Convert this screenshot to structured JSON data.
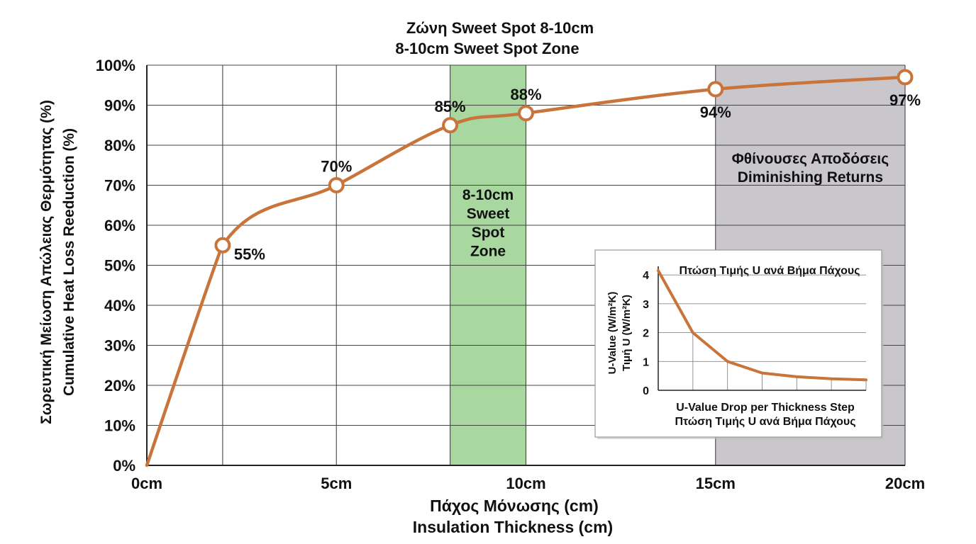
{
  "chart_data": {
    "type": "line",
    "title": "Ζώνη Sweet Spot 8-10cm",
    "subtitle": "8-10cm Sweet Spot Zone",
    "xlabel": [
      "Πάχος Μόνωσης (cm)",
      "Insulation Thickness (cm)"
    ],
    "ylabel": [
      "Σωρευτική Μείωση Απώλειας Θερμότητας (%)",
      "Cumulative Heat Loss Reeduction (%)"
    ],
    "xlim": [
      0,
      20
    ],
    "ylim": [
      0,
      100
    ],
    "x_ticks": [
      0,
      5,
      10,
      15,
      20
    ],
    "x_tick_labels": [
      "0cm",
      "5cm",
      "10cm",
      "15cm",
      "20cm"
    ],
    "y_ticks": [
      0,
      10,
      20,
      30,
      40,
      50,
      60,
      70,
      80,
      90,
      100
    ],
    "y_tick_labels": [
      "0%",
      "10%",
      "20%",
      "30%",
      "40%",
      "50%",
      "60%",
      "70%",
      "80%",
      "90%",
      "100%"
    ],
    "vertical_gridlines_at": [
      2,
      5,
      8,
      10,
      15,
      20
    ],
    "series": [
      {
        "name": "Cumulative Heat Loss Reduction",
        "color": "#c8743a",
        "x": [
          0,
          2,
          5,
          8,
          10,
          15,
          20
        ],
        "y": [
          0,
          55,
          70,
          85,
          88,
          94,
          97
        ]
      }
    ],
    "markers": [
      {
        "x": 2,
        "y": 55,
        "label": "55%",
        "label_side": "below-right"
      },
      {
        "x": 5,
        "y": 70,
        "label": "70%",
        "label_side": "above"
      },
      {
        "x": 8,
        "y": 85,
        "label": "85%",
        "label_side": "above"
      },
      {
        "x": 10,
        "y": 88,
        "label": "88%",
        "label_side": "above"
      },
      {
        "x": 15,
        "y": 94,
        "label": "94%",
        "label_side": "below"
      },
      {
        "x": 20,
        "y": 97,
        "label": "97%",
        "label_side": "below"
      }
    ],
    "zones": [
      {
        "name": "sweet-spot",
        "x_range": [
          8,
          10
        ],
        "color": "#a8d8a0",
        "label_lines": [
          "8-10cm",
          "Sweet",
          "Spot",
          "Zone"
        ]
      },
      {
        "name": "diminishing-returns",
        "x_range": [
          15,
          20
        ],
        "color": "#c9c7cb",
        "label_lines": [
          "Φθίνουσες Αποδόσεις",
          "Diminishing Returns"
        ]
      }
    ],
    "inset": {
      "type": "line",
      "title": "Πτώση Τιμής U ανά Βήμα Πάχους",
      "xlabel": [
        "U-Value Drop per Thickness Step",
        "Πτώση Τιμής U ανά Βήμα Πάχους"
      ],
      "ylabel": [
        "U-Value (W/m²K)",
        "Τιμή U (W/m²K)"
      ],
      "ylim": [
        0,
        4.2
      ],
      "y_ticks": [
        0,
        1,
        2,
        3,
        4
      ],
      "y_tick_labels": [
        "0",
        "1",
        "2",
        "3",
        "4"
      ],
      "x": [
        0,
        1,
        2,
        3,
        4,
        5,
        6
      ],
      "y": [
        4.15,
        2.0,
        1.0,
        0.6,
        0.47,
        0.4,
        0.36
      ],
      "color": "#c8743a"
    }
  }
}
